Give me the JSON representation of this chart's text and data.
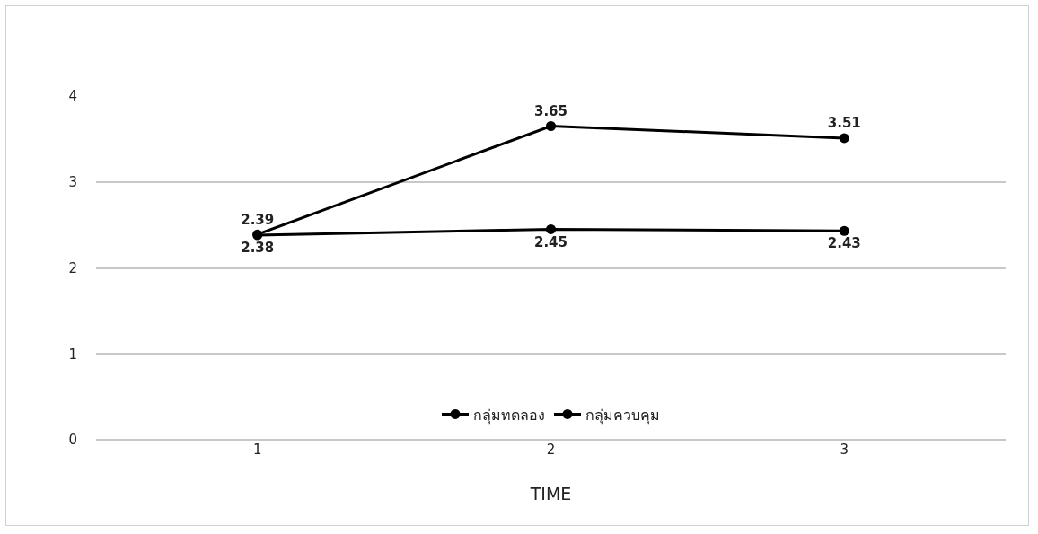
{
  "chart_data": {
    "type": "line",
    "xlabel": "TIME",
    "categories": [
      "1",
      "2",
      "3"
    ],
    "series": [
      {
        "name": "กลุ่มทดลอง",
        "color": "#000000",
        "values": [
          2.39,
          3.65,
          3.51
        ]
      },
      {
        "name": "กลุ่มควบคุม",
        "color": "#000000",
        "values": [
          2.38,
          2.45,
          2.43
        ]
      }
    ],
    "ylim": [
      0,
      4
    ],
    "yticks": [
      0,
      1,
      2,
      3,
      4
    ],
    "grid": "y",
    "legend": "bottom",
    "marker": "circle",
    "line_style": "solid",
    "data_labels": true
  }
}
